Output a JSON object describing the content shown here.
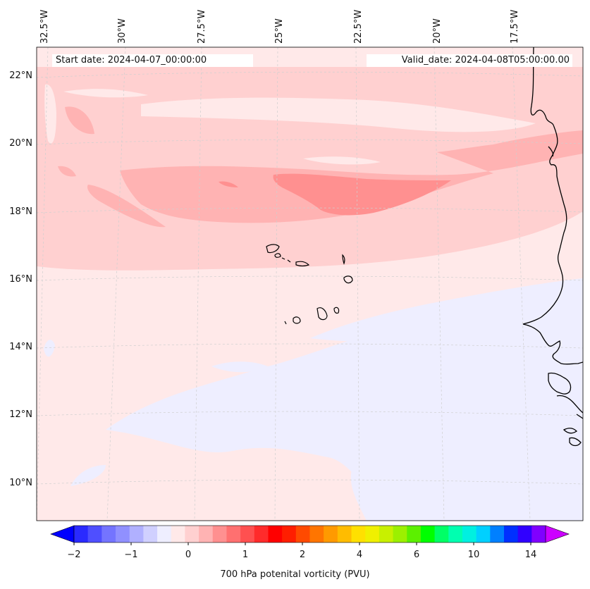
{
  "header": {
    "start_date": "Start date: 2024-04-07_00:00:00",
    "valid_date": "Valid_date: 2024-04-08T05:00:00.00"
  },
  "map": {
    "longitude_labels": [
      "32.5°W",
      "30°W",
      "27.5°W",
      "25°W",
      "22.5°W",
      "20°W",
      "17.5°W"
    ],
    "latitude_labels": [
      "22°N",
      "20°N",
      "18°N",
      "16°N",
      "14°N",
      "12°N",
      "10°N"
    ],
    "gridlines": true,
    "coastlines": true
  },
  "colorbar": {
    "label": "700 hPa potenital vorticity (PVU)",
    "tick_labels": [
      "−2",
      "−1",
      "0",
      "1",
      "2",
      "4",
      "6",
      "10",
      "14"
    ],
    "colors": [
      "#0000ff",
      "#2a2aff",
      "#4f4fff",
      "#7474ff",
      "#9090ff",
      "#b0b0ff",
      "#d0d0ff",
      "#eeeeff",
      "#ffe9e9",
      "#ffd0d0",
      "#ffb3b3",
      "#ff9090",
      "#ff7070",
      "#ff5050",
      "#ff2b2b",
      "#ff0000",
      "#ff1e00",
      "#ff4a00",
      "#ff7500",
      "#ff9a00",
      "#ffbc00",
      "#ffe000",
      "#f0f000",
      "#c8f000",
      "#9cf000",
      "#5cf000",
      "#00ff00",
      "#00ff66",
      "#00ffb0",
      "#00f0e0",
      "#00d0ff",
      "#0080ff",
      "#0030ff",
      "#3000ff",
      "#8000ff",
      "#cc00ff"
    ],
    "extend": "both"
  }
}
